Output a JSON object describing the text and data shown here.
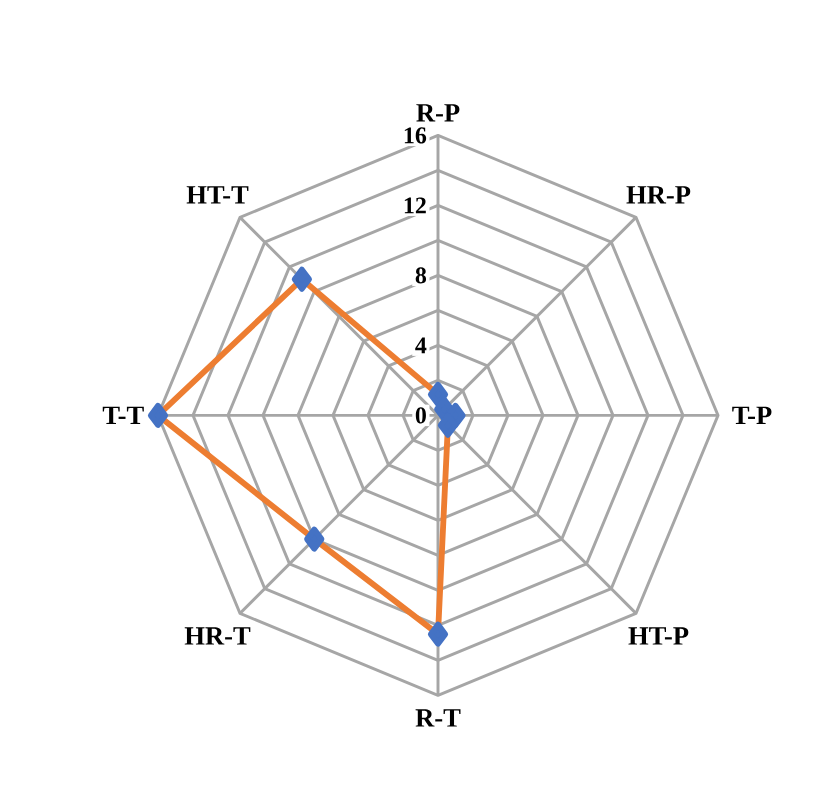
{
  "chart_data": {
    "type": "radar",
    "categories": [
      "R-P",
      "HR-P",
      "T-P",
      "HT-P",
      "R-T",
      "HR-T",
      "T-T",
      "HT-T"
    ],
    "series": [
      {
        "color": "#ed7d31",
        "values": [
          1.2,
          0.5,
          1,
          0.8,
          12.5,
          10,
          16,
          11
        ]
      }
    ],
    "ylim": [
      0,
      16
    ],
    "yticks": [
      0,
      4,
      8,
      12,
      16
    ],
    "grid": true,
    "marker": "diamond"
  }
}
